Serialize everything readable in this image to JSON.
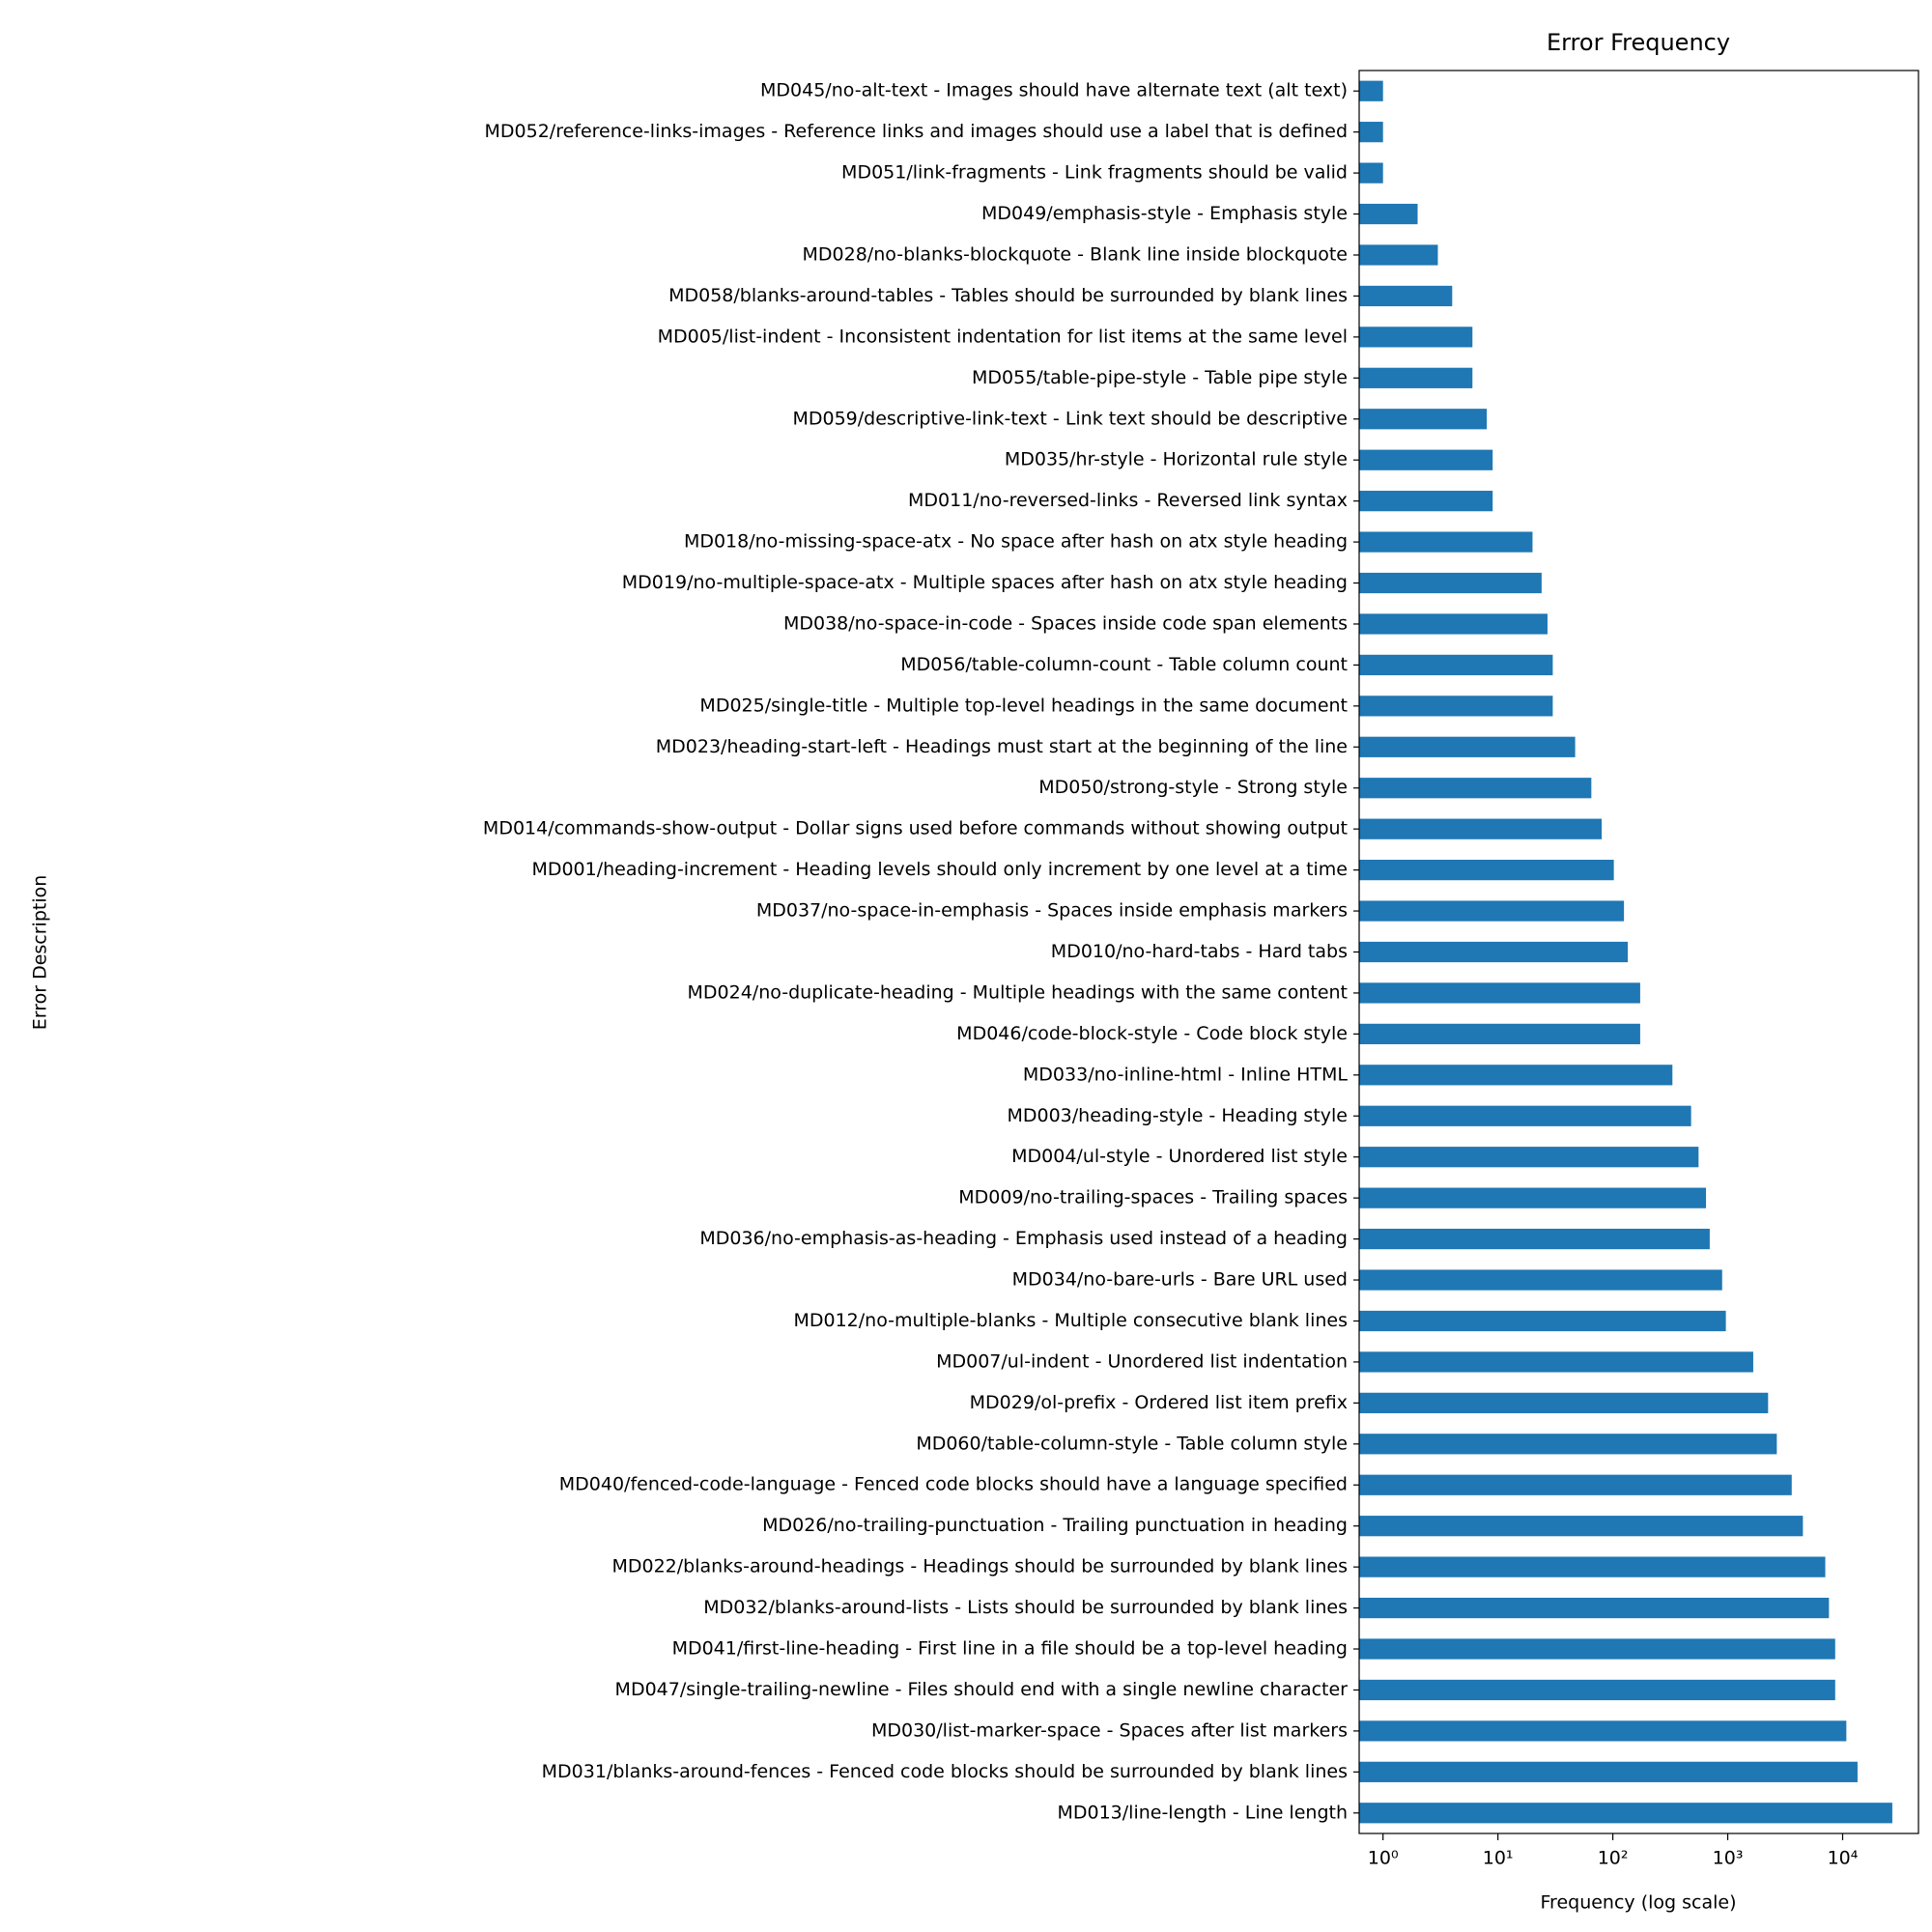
{
  "chart_data": {
    "type": "barh",
    "title": "Error Frequency",
    "x_label": "Frequency (log scale)",
    "y_label": "Error Description",
    "xscale": "log",
    "color": "#1f77b4",
    "xlim": [
      0.62,
      45700
    ],
    "xticks": [
      {
        "value": 1,
        "label": "10⁰"
      },
      {
        "value": 10,
        "label": "10¹"
      },
      {
        "value": 100,
        "label": "10²"
      },
      {
        "value": 1000,
        "label": "10³"
      },
      {
        "value": 10000,
        "label": "10⁴"
      }
    ],
    "categories": [
      "MD045/no-alt-text - Images should have alternate text (alt text)",
      "MD052/reference-links-images - Reference links and images should use a label that is defined",
      "MD051/link-fragments - Link fragments should be valid",
      "MD049/emphasis-style - Emphasis style",
      "MD028/no-blanks-blockquote - Blank line inside blockquote",
      "MD058/blanks-around-tables - Tables should be surrounded by blank lines",
      "MD005/list-indent - Inconsistent indentation for list items at the same level",
      "MD055/table-pipe-style - Table pipe style",
      "MD059/descriptive-link-text - Link text should be descriptive",
      "MD035/hr-style - Horizontal rule style",
      "MD011/no-reversed-links - Reversed link syntax",
      "MD018/no-missing-space-atx - No space after hash on atx style heading",
      "MD019/no-multiple-space-atx - Multiple spaces after hash on atx style heading",
      "MD038/no-space-in-code - Spaces inside code span elements",
      "MD056/table-column-count - Table column count",
      "MD025/single-title - Multiple top-level headings in the same document",
      "MD023/heading-start-left - Headings must start at the beginning of the line",
      "MD050/strong-style - Strong style",
      "MD014/commands-show-output - Dollar signs used before commands without showing output",
      "MD001/heading-increment - Heading levels should only increment by one level at a time",
      "MD037/no-space-in-emphasis - Spaces inside emphasis markers",
      "MD010/no-hard-tabs - Hard tabs",
      "MD024/no-duplicate-heading - Multiple headings with the same content",
      "MD046/code-block-style - Code block style",
      "MD033/no-inline-html - Inline HTML",
      "MD003/heading-style - Heading style",
      "MD004/ul-style - Unordered list style",
      "MD009/no-trailing-spaces - Trailing spaces",
      "MD036/no-emphasis-as-heading - Emphasis used instead of a heading",
      "MD034/no-bare-urls - Bare URL used",
      "MD012/no-multiple-blanks - Multiple consecutive blank lines",
      "MD007/ul-indent - Unordered list indentation",
      "MD029/ol-prefix - Ordered list item prefix",
      "MD060/table-column-style - Table column style",
      "MD040/fenced-code-language - Fenced code blocks should have a language specified",
      "MD026/no-trailing-punctuation - Trailing punctuation in heading",
      "MD022/blanks-around-headings - Headings should be surrounded by blank lines",
      "MD032/blanks-around-lists - Lists should be surrounded by blank lines",
      "MD041/first-line-heading - First line in a file should be a top-level heading",
      "MD047/single-trailing-newline - Files should end with a single newline character",
      "MD030/list-marker-space - Spaces after list markers",
      "MD031/blanks-around-fences - Fenced code blocks should be surrounded by blank lines",
      "MD013/line-length - Line length"
    ],
    "values": [
      1,
      1,
      1,
      2,
      3,
      4,
      6,
      6,
      8,
      9,
      9,
      20,
      24,
      27,
      30,
      30,
      47,
      65,
      80,
      102,
      125,
      135,
      173,
      173,
      330,
      480,
      557,
      647,
      697,
      894,
      963,
      1667,
      2245,
      2673,
      3604,
      4508,
      7060,
      7600,
      8610,
      8610,
      10770,
      13480,
      27050
    ]
  }
}
